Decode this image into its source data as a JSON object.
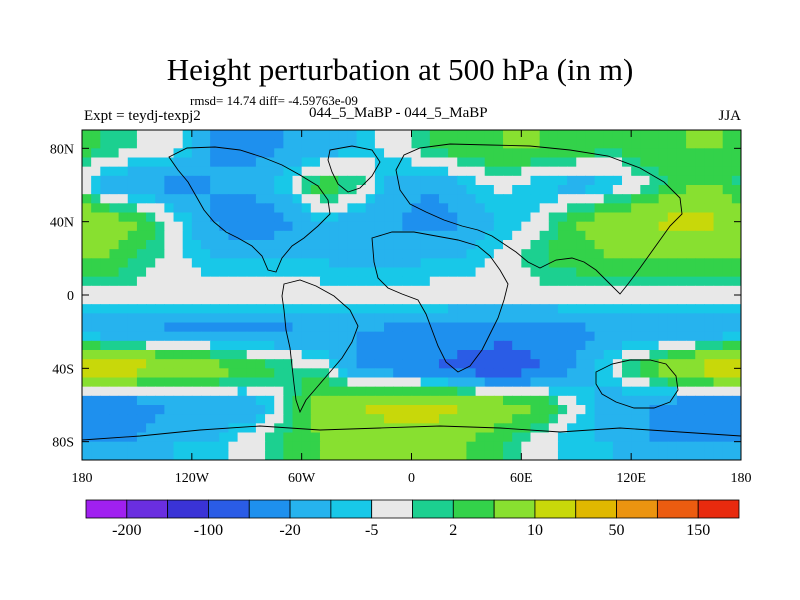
{
  "header": {
    "title": "Height perturbation at 500 hPa (in m)",
    "stats": "rmsd= 14.74 diff= -4.59763e-09",
    "experiment": "Expt = teydj-texpj2",
    "case_id": "044_5_MaBP - 044_5_MaBP",
    "season": "JJA"
  },
  "chart_data": {
    "type": "heatmap",
    "title": "Height perturbation at 500 hPa (in m)",
    "projection": "cylindrical equidistant",
    "xlim": [
      -180,
      180
    ],
    "ylim": [
      -90,
      90
    ],
    "x_ticks": [
      {
        "value": -180,
        "label": "180"
      },
      {
        "value": -120,
        "label": "120W"
      },
      {
        "value": -60,
        "label": "60W"
      },
      {
        "value": 0,
        "label": "0"
      },
      {
        "value": 60,
        "label": "60E"
      },
      {
        "value": 120,
        "label": "120E"
      },
      {
        "value": 180,
        "label": "180"
      }
    ],
    "y_ticks": [
      {
        "value": 80,
        "label": "80N"
      },
      {
        "value": 40,
        "label": "40N"
      },
      {
        "value": 0,
        "label": "0"
      },
      {
        "value": -40,
        "label": "40S"
      },
      {
        "value": -80,
        "label": "80S"
      }
    ],
    "colorbar": {
      "levels": [
        -200,
        -150,
        -100,
        -50,
        -20,
        -10,
        -5,
        -2,
        2,
        5,
        10,
        20,
        50,
        100,
        150,
        200
      ],
      "labels": [
        "-200",
        "-100",
        "-20",
        "-5",
        "2",
        "10",
        "50",
        "150"
      ],
      "colors": [
        "#a020f0",
        "#6a2ee0",
        "#3a33d6",
        "#2a5ce6",
        "#1e90ee",
        "#26b3ee",
        "#18c8e8",
        "#e8e8e8",
        "#1cd090",
        "#33d24a",
        "#88e030",
        "#c8d80a",
        "#e0b800",
        "#ec9410",
        "#ec5c10",
        "#e82a0e"
      ]
    },
    "field": [
      {
        "lat": 80,
        "values": [
          5,
          2,
          0,
          -10,
          -12,
          -10,
          -8,
          -5,
          0,
          5,
          8,
          10,
          10,
          8,
          5,
          8,
          10,
          10
        ]
      },
      {
        "lat": 60,
        "values": [
          -8,
          -10,
          -12,
          -10,
          -8,
          -3,
          8,
          5,
          -8,
          -10,
          -5,
          0,
          -5,
          -8,
          -5,
          2,
          8,
          10
        ]
      },
      {
        "lat": 40,
        "values": [
          15,
          10,
          0,
          -10,
          -15,
          -12,
          -5,
          -8,
          -10,
          -12,
          -10,
          -5,
          0,
          10,
          15,
          20,
          25,
          20
        ]
      },
      {
        "lat": 20,
        "values": [
          10,
          5,
          0,
          -5,
          -5,
          -5,
          -5,
          -8,
          -8,
          -5,
          -5,
          0,
          5,
          8,
          10,
          10,
          10,
          10
        ]
      },
      {
        "lat": 0,
        "values": [
          0,
          0,
          0,
          0,
          0,
          0,
          0,
          0,
          0,
          0,
          0,
          0,
          0,
          0,
          0,
          0,
          0,
          0
        ]
      },
      {
        "lat": -20,
        "values": [
          -10,
          -10,
          -12,
          -12,
          -12,
          -12,
          -10,
          -10,
          -12,
          -12,
          -15,
          -15,
          -15,
          -12,
          -10,
          -10,
          -10,
          -10
        ]
      },
      {
        "lat": -40,
        "values": [
          30,
          25,
          20,
          15,
          10,
          5,
          2,
          -10,
          -15,
          -20,
          -25,
          -30,
          -20,
          -10,
          0,
          10,
          20,
          30
        ]
      },
      {
        "lat": -60,
        "values": [
          -20,
          -15,
          -10,
          -10,
          -10,
          0,
          15,
          20,
          25,
          25,
          20,
          15,
          10,
          0,
          -10,
          -10,
          -15,
          -20
        ]
      },
      {
        "lat": -80,
        "values": [
          -10,
          -10,
          -5,
          -5,
          0,
          5,
          10,
          12,
          15,
          15,
          10,
          5,
          0,
          -5,
          -5,
          -10,
          -10,
          -10
        ]
      }
    ]
  }
}
